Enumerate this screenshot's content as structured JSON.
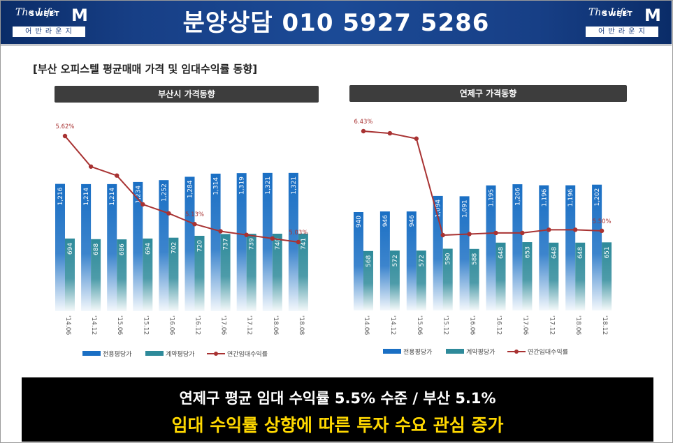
{
  "header": {
    "phone": "분양상담 010 5927 5286",
    "logo_script": "The Life",
    "logo_word": "SWEET",
    "logo_m": "M",
    "logo_sub": "어 반 라 운 지"
  },
  "page_title": "[부산 오피스텔 평균매매 가격 및 임대수익률 동향]",
  "colors": {
    "bar_exclusive": "#1a6fc4",
    "bar_contract": "#2e8a9a",
    "line": "#a83232",
    "panel_header": "#3d3d3d"
  },
  "chart_data": [
    {
      "type": "bar",
      "title": "부산시 가격동향",
      "categories": [
        "'14.06",
        "'14.12",
        "'15.06",
        "'15.12",
        "'16.06",
        "'16.12",
        "'17.06",
        "'17.12",
        "'18.06",
        "'18.08"
      ],
      "series": [
        {
          "name": "전용평당가",
          "kind": "bar",
          "values": [
            1216,
            1214,
            1214,
            1234,
            1252,
            1284,
            1314,
            1319,
            1321,
            1321
          ]
        },
        {
          "name": "계약평당가",
          "kind": "bar",
          "values": [
            694,
            688,
            686,
            694,
            702,
            720,
            737,
            739,
            740,
            741
          ]
        },
        {
          "name": "연간임대수익률",
          "kind": "line",
          "values": [
            5.62,
            5.45,
            5.4,
            5.24,
            5.19,
            5.13,
            5.09,
            5.07,
            5.05,
            5.03
          ]
        }
      ],
      "line_labels": [
        "5.62%",
        "",
        "",
        "",
        "",
        "5.13%",
        "",
        "",
        "",
        "5.03%"
      ],
      "bar_ylim": [
        0,
        1600
      ],
      "line_ylim": [
        4.5,
        5.8
      ],
      "legend_position": "bottom"
    },
    {
      "type": "bar",
      "title": "연제구 가격동향",
      "categories": [
        "'14.06",
        "'14.12",
        "'15.06",
        "'15.12",
        "'16.06",
        "'16.12",
        "'17.06",
        "'17.12",
        "'18.06",
        "'18.12"
      ],
      "series": [
        {
          "name": "전용평당가",
          "kind": "bar",
          "values": [
            940,
            946,
            946,
            1094,
            1091,
            1195,
            1206,
            1196,
            1196,
            1202
          ]
        },
        {
          "name": "계약평당가",
          "kind": "bar",
          "values": [
            568,
            572,
            572,
            590,
            588,
            648,
            653,
            648,
            648,
            651
          ]
        },
        {
          "name": "연간임대수익률",
          "kind": "line",
          "values": [
            6.43,
            6.41,
            6.36,
            5.46,
            5.47,
            5.48,
            5.48,
            5.51,
            5.51,
            5.5
          ]
        }
      ],
      "line_labels": [
        "6.43%",
        "",
        "",
        "",
        "",
        "",
        "",
        "",
        "",
        "5.50%"
      ],
      "bar_ylim": [
        0,
        1600
      ],
      "line_ylim": [
        3.9,
        6.9
      ],
      "legend_position": "bottom"
    }
  ],
  "footer": {
    "line1": "연제구 평균 임대 수익률 5.5% 수준 / 부산 5.1%",
    "line2": "임대 수익률 상향에 따른 투자 수요 관심 증가"
  }
}
